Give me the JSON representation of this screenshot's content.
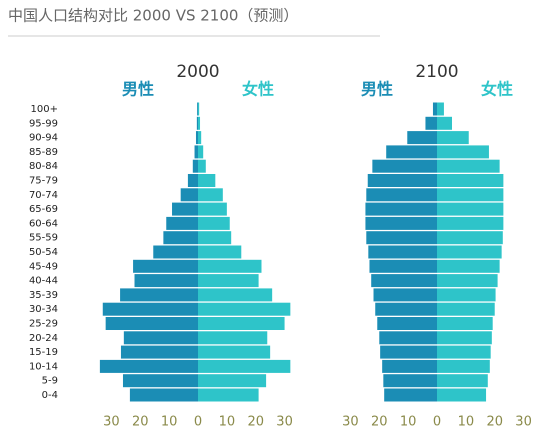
{
  "title": "中国人口结构对比 2000 VS 2100（预测）",
  "chart_data": [
    {
      "type": "pyramid",
      "title": "2000",
      "categories": [
        "100+",
        "95-99",
        "90-94",
        "85-89",
        "80-84",
        "75-79",
        "70-74",
        "65-69",
        "60-64",
        "55-59",
        "50-54",
        "45-49",
        "40-44",
        "35-39",
        "30-34",
        "25-29",
        "20-24",
        "15-19",
        "10-14",
        "5-9",
        "0-4"
      ],
      "series": [
        {
          "name": "男性",
          "color": "#1b8db5",
          "side": "left",
          "values": [
            0.3,
            0.4,
            0.7,
            1.2,
            1.8,
            3.5,
            6,
            9,
            11,
            12,
            15.5,
            22.5,
            22,
            27,
            33,
            32,
            25.7,
            26.7,
            34,
            26,
            23.6
          ]
        },
        {
          "name": "女性",
          "color": "#2ec4c9",
          "side": "right",
          "values": [
            0.4,
            0.7,
            1.1,
            1.8,
            2.7,
            6,
            8.6,
            10,
            11,
            11.5,
            15,
            22,
            21,
            25.7,
            32,
            30,
            24,
            25,
            32,
            23.6,
            21
          ]
        }
      ],
      "xlim": [
        -35,
        35
      ],
      "xticks": [
        {
          "value": -30,
          "label": "30"
        },
        {
          "value": -20,
          "label": "20"
        },
        {
          "value": -10,
          "label": "10"
        },
        0,
        10,
        20,
        30
      ]
    },
    {
      "type": "pyramid",
      "title": "2100",
      "series": [
        {
          "name": "男性",
          "color": "#1b8db5",
          "side": "left",
          "values": [
            1.4,
            4,
            10.3,
            17.6,
            22.4,
            24,
            24.5,
            24.8,
            24.8,
            24.5,
            23.8,
            23.4,
            22.8,
            22,
            21.4,
            20.7,
            20,
            19.7,
            19,
            18.6,
            18.3
          ]
        },
        {
          "name": "女性",
          "color": "#2ec4c9",
          "side": "right",
          "values": [
            2.4,
            5.2,
            11,
            18,
            21.7,
            23,
            23,
            23,
            23,
            22.8,
            22.4,
            21.7,
            21,
            20.3,
            20,
            19.3,
            19,
            18.6,
            18.3,
            17.6,
            17
          ]
        }
      ],
      "xlim": [
        -35,
        35
      ],
      "xticks": [
        {
          "value": -30,
          "label": "30"
        },
        {
          "value": -20,
          "label": "20"
        },
        {
          "value": -10,
          "label": "10"
        },
        0,
        10,
        20,
        30
      ]
    }
  ]
}
